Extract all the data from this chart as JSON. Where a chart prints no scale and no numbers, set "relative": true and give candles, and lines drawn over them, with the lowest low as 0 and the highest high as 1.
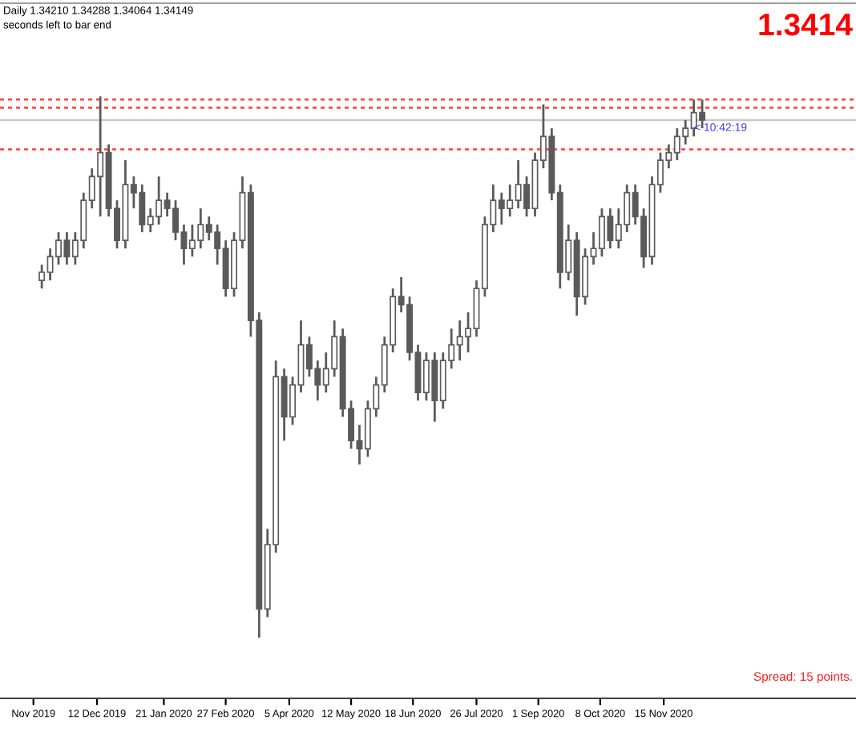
{
  "chart_data": {
    "type": "candlestick",
    "relative": true,
    "color": "#5a5a5a",
    "x": [
      "2019-11-09",
      "2019-11-14",
      "2019-11-19",
      "2019-11-24",
      "2019-11-29",
      "2019-12-04",
      "2019-12-09",
      "2019-12-14",
      "2019-12-19",
      "2019-12-24",
      "2019-12-29",
      "2020-01-03",
      "2020-01-08",
      "2020-01-13",
      "2020-01-18",
      "2020-01-23",
      "2020-01-28",
      "2020-02-02",
      "2020-02-07",
      "2020-02-12",
      "2020-02-17",
      "2020-02-22",
      "2020-02-27",
      "2020-03-03",
      "2020-03-08",
      "2020-03-13",
      "2020-03-18",
      "2020-03-23",
      "2020-03-28",
      "2020-04-02",
      "2020-04-07",
      "2020-04-12",
      "2020-04-17",
      "2020-04-22",
      "2020-04-27",
      "2020-05-02",
      "2020-05-07",
      "2020-05-12",
      "2020-05-17",
      "2020-05-22",
      "2020-05-27",
      "2020-06-01",
      "2020-06-06",
      "2020-06-11",
      "2020-06-16",
      "2020-06-21",
      "2020-06-26",
      "2020-07-01",
      "2020-07-06",
      "2020-07-11",
      "2020-07-16",
      "2020-07-21",
      "2020-07-26",
      "2020-07-31",
      "2020-08-05",
      "2020-08-10",
      "2020-08-15",
      "2020-08-20",
      "2020-08-25",
      "2020-08-30",
      "2020-09-04",
      "2020-09-09",
      "2020-09-14",
      "2020-09-19",
      "2020-09-24",
      "2020-09-29",
      "2020-10-04",
      "2020-10-09",
      "2020-10-14",
      "2020-10-19",
      "2020-10-24",
      "2020-10-29",
      "2020-11-03",
      "2020-11-08",
      "2020-11-13",
      "2020-11-18",
      "2020-11-23",
      "2020-11-28",
      "2020-12-03",
      "2020-12-08"
    ],
    "ohlc": [
      [
        0.66,
        0.689,
        0.645,
        0.675
      ],
      [
        0.675,
        0.719,
        0.66,
        0.704
      ],
      [
        0.704,
        0.749,
        0.689,
        0.734
      ],
      [
        0.734,
        0.749,
        0.689,
        0.704
      ],
      [
        0.704,
        0.749,
        0.689,
        0.734
      ],
      [
        0.734,
        0.822,
        0.719,
        0.808
      ],
      [
        0.808,
        0.867,
        0.793,
        0.852
      ],
      [
        0.852,
        1.0,
        0.778,
        0.896
      ],
      [
        0.896,
        0.911,
        0.778,
        0.793
      ],
      [
        0.793,
        0.808,
        0.719,
        0.734
      ],
      [
        0.734,
        0.882,
        0.719,
        0.837
      ],
      [
        0.837,
        0.852,
        0.793,
        0.822
      ],
      [
        0.822,
        0.837,
        0.749,
        0.763
      ],
      [
        0.763,
        0.793,
        0.749,
        0.778
      ],
      [
        0.778,
        0.852,
        0.763,
        0.808
      ],
      [
        0.808,
        0.822,
        0.778,
        0.793
      ],
      [
        0.793,
        0.808,
        0.734,
        0.749
      ],
      [
        0.749,
        0.763,
        0.689,
        0.719
      ],
      [
        0.719,
        0.763,
        0.704,
        0.734
      ],
      [
        0.734,
        0.793,
        0.719,
        0.763
      ],
      [
        0.763,
        0.778,
        0.734,
        0.749
      ],
      [
        0.749,
        0.763,
        0.689,
        0.719
      ],
      [
        0.719,
        0.734,
        0.63,
        0.645
      ],
      [
        0.645,
        0.749,
        0.63,
        0.734
      ],
      [
        0.734,
        0.852,
        0.719,
        0.822
      ],
      [
        0.822,
        0.837,
        0.556,
        0.586
      ],
      [
        0.586,
        0.601,
        0.0,
        0.053
      ],
      [
        0.053,
        0.201,
        0.038,
        0.172
      ],
      [
        0.172,
        0.512,
        0.157,
        0.482
      ],
      [
        0.482,
        0.497,
        0.364,
        0.408
      ],
      [
        0.408,
        0.482,
        0.393,
        0.467
      ],
      [
        0.467,
        0.586,
        0.453,
        0.541
      ],
      [
        0.541,
        0.556,
        0.482,
        0.497
      ],
      [
        0.497,
        0.512,
        0.438,
        0.467
      ],
      [
        0.467,
        0.527,
        0.453,
        0.497
      ],
      [
        0.497,
        0.586,
        0.482,
        0.556
      ],
      [
        0.556,
        0.571,
        0.408,
        0.423
      ],
      [
        0.423,
        0.438,
        0.349,
        0.364
      ],
      [
        0.364,
        0.393,
        0.32,
        0.349
      ],
      [
        0.349,
        0.438,
        0.334,
        0.423
      ],
      [
        0.423,
        0.482,
        0.408,
        0.467
      ],
      [
        0.467,
        0.556,
        0.453,
        0.541
      ],
      [
        0.541,
        0.645,
        0.527,
        0.63
      ],
      [
        0.63,
        0.666,
        0.601,
        0.615
      ],
      [
        0.615,
        0.63,
        0.512,
        0.527
      ],
      [
        0.527,
        0.541,
        0.438,
        0.453
      ],
      [
        0.453,
        0.527,
        0.438,
        0.512
      ],
      [
        0.512,
        0.527,
        0.399,
        0.438
      ],
      [
        0.438,
        0.527,
        0.423,
        0.512
      ],
      [
        0.512,
        0.571,
        0.497,
        0.541
      ],
      [
        0.541,
        0.586,
        0.512,
        0.556
      ],
      [
        0.556,
        0.601,
        0.527,
        0.571
      ],
      [
        0.571,
        0.66,
        0.556,
        0.645
      ],
      [
        0.645,
        0.778,
        0.63,
        0.763
      ],
      [
        0.763,
        0.837,
        0.749,
        0.808
      ],
      [
        0.808,
        0.822,
        0.763,
        0.793
      ],
      [
        0.793,
        0.837,
        0.778,
        0.808
      ],
      [
        0.808,
        0.882,
        0.793,
        0.837
      ],
      [
        0.837,
        0.852,
        0.778,
        0.793
      ],
      [
        0.793,
        0.896,
        0.778,
        0.882
      ],
      [
        0.882,
        0.985,
        0.867,
        0.926
      ],
      [
        0.926,
        0.941,
        0.808,
        0.822
      ],
      [
        0.822,
        0.837,
        0.645,
        0.675
      ],
      [
        0.675,
        0.763,
        0.66,
        0.734
      ],
      [
        0.734,
        0.749,
        0.595,
        0.63
      ],
      [
        0.63,
        0.719,
        0.615,
        0.704
      ],
      [
        0.704,
        0.749,
        0.689,
        0.719
      ],
      [
        0.719,
        0.793,
        0.704,
        0.778
      ],
      [
        0.778,
        0.793,
        0.719,
        0.734
      ],
      [
        0.734,
        0.793,
        0.719,
        0.763
      ],
      [
        0.763,
        0.837,
        0.749,
        0.822
      ],
      [
        0.822,
        0.837,
        0.763,
        0.778
      ],
      [
        0.778,
        0.793,
        0.683,
        0.704
      ],
      [
        0.704,
        0.852,
        0.689,
        0.837
      ],
      [
        0.837,
        0.896,
        0.822,
        0.882
      ],
      [
        0.882,
        0.911,
        0.867,
        0.896
      ],
      [
        0.896,
        0.941,
        0.882,
        0.926
      ],
      [
        0.926,
        0.956,
        0.911,
        0.941
      ],
      [
        0.941,
        0.994,
        0.926,
        0.97
      ],
      [
        0.97,
        0.994,
        0.941,
        0.956
      ]
    ],
    "xlim": [
      "2019-10-15",
      "2021-03-10"
    ],
    "xticks": [
      {
        "value": "2019-11-04",
        "label": "Nov 2019"
      },
      {
        "value": "2019-12-12",
        "label": "12 Dec 2019"
      },
      {
        "value": "2020-01-21",
        "label": "21 Jan 2020"
      },
      {
        "value": "2020-02-27",
        "label": "27 Feb 2020"
      },
      {
        "value": "2020-04-05",
        "label": "5 Apr 2020"
      },
      {
        "value": "2020-05-12",
        "label": "12 May 2020"
      },
      {
        "value": "2020-06-18",
        "label": "18 Jun 2020"
      },
      {
        "value": "2020-07-26",
        "label": "26 Jul 2020"
      },
      {
        "value": "2020-09-01",
        "label": "1 Sep 2020"
      },
      {
        "value": "2020-10-08",
        "label": "8 Oct 2020"
      },
      {
        "value": "2020-11-15",
        "label": "15 Nov 2020"
      }
    ],
    "tick_labels": "x",
    "ref_lines": [
      {
        "axis": "y",
        "value": 0.994,
        "label": null,
        "color": "#ff4040",
        "line_style": "dotted"
      },
      {
        "axis": "y",
        "value": 0.979,
        "label": null,
        "color": "#ff4040",
        "line_style": "dotted"
      },
      {
        "axis": "y",
        "value": 0.956,
        "label": null,
        "color": "#c8c8c8",
        "line_style": "solid"
      },
      {
        "axis": "y",
        "value": 0.902,
        "label": null,
        "color": "#ff4040",
        "line_style": "dotted"
      }
    ],
    "annotations": [
      "Daily 1.34210 1.34288 1.34064 1.34149",
      "seconds left to bar end",
      "1.3414",
      "< 10:42:19",
      "Spread: 15 points."
    ]
  }
}
